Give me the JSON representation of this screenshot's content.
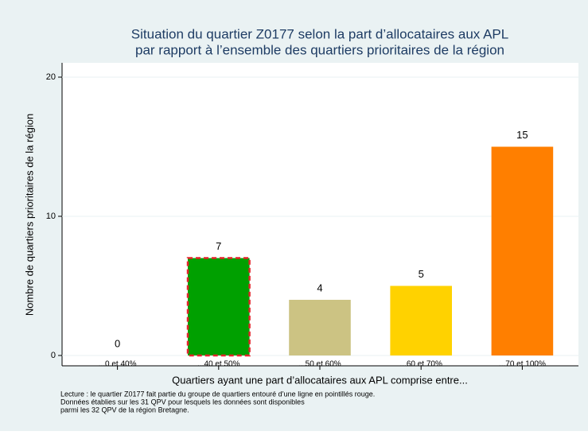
{
  "chart_data": {
    "type": "bar",
    "title": [
      "Situation du quartier Z0177 selon la part d’allocataires aux APL",
      "par rapport à l’ensemble des quartiers prioritaires de la région"
    ],
    "categories": [
      "...0 et 40%",
      "...40 et 50%",
      "...50 et 60%",
      "...60 et 70%",
      "...70 et 100%"
    ],
    "values": [
      0,
      7,
      4,
      5,
      15
    ],
    "colors": [
      "#1a476f",
      "#00a000",
      "#ccc383",
      "#ffd200",
      "#ff7f00"
    ],
    "highlight_index": 1,
    "highlight_color": "#e3242b",
    "ylabel": "Nombre de quartiers prioritaires de la région",
    "xlabel": "Quartiers ayant une part d’allocataires aux APL comprise entre...",
    "ylim": [
      0,
      20
    ],
    "yticks": [
      0,
      10,
      20
    ],
    "grid": true,
    "notes": [
      "Lecture : le quartier Z0177 fait partie du groupe de quartiers entouré d’une ligne en pointillés rouge.",
      "Données établies sur les 31 QPV pour lesquels les données sont disponibles",
      "parmi les 32 QPV de la région Bretagne."
    ]
  }
}
